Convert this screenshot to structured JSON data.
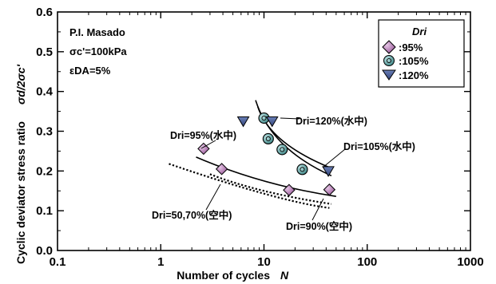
{
  "chart_data": {
    "type": "scatter",
    "x_scale": "log",
    "xlim": [
      0.1,
      1000
    ],
    "ylim": [
      0.0,
      0.6
    ],
    "x_ticks": [
      "0.1",
      "1",
      "10",
      "100",
      "1000"
    ],
    "y_ticks": [
      "0.0",
      "0.1",
      "0.2",
      "0.3",
      "0.4",
      "0.5",
      "0.6"
    ],
    "xlabel": "Number of cycles",
    "xlabel_symbol": "N",
    "ylabel": "Cyclic deviator stress ratio",
    "ylabel_symbol": "σd/2σc'",
    "info_lines": [
      "P.I. Masado",
      "σc'=100kPa",
      "εDA=5%"
    ],
    "legend_title": "Dri",
    "legend_position": "top-right",
    "series": [
      {
        "name": ":95%",
        "marker": "diamond",
        "color": "#b070b0",
        "x": [
          2.6,
          3.9,
          17.5,
          43
        ],
        "y": [
          0.256,
          0.205,
          0.152,
          0.153
        ]
      },
      {
        "name": ":105%",
        "marker": "circle",
        "color": "#5aa0a0",
        "x": [
          10,
          11,
          15,
          23.5
        ],
        "y": [
          0.333,
          0.281,
          0.254,
          0.204
        ]
      },
      {
        "name": ":120%",
        "marker": "triangle",
        "color": "#4a5c96",
        "x": [
          6.3,
          12,
          42
        ],
        "y": [
          0.326,
          0.326,
          0.201
        ]
      }
    ],
    "curves": [
      {
        "style": "solid",
        "x": [
          2.2,
          10,
          50
        ],
        "y": [
          0.235,
          0.175,
          0.136
        ]
      },
      {
        "style": "solid",
        "x": [
          8.3,
          15,
          45
        ],
        "y": [
          0.378,
          0.27,
          0.188
        ]
      },
      {
        "style": "solid",
        "x": [
          8.7,
          15,
          45
        ],
        "y": [
          0.362,
          0.277,
          0.207
        ]
      },
      {
        "style": "dotted",
        "x": [
          3,
          10,
          45
        ],
        "y": [
          0.192,
          0.15,
          0.117
        ]
      },
      {
        "style": "dotted",
        "x": [
          1.2,
          10,
          43
        ],
        "y": [
          0.218,
          0.143,
          0.107
        ]
      }
    ],
    "annotations": [
      "Dri=95%(水中)",
      "Dri=120%(水中)",
      "Dri=105%(水中)",
      "Dri=50,70%(空中)",
      "Dri=90%(空中)"
    ]
  }
}
